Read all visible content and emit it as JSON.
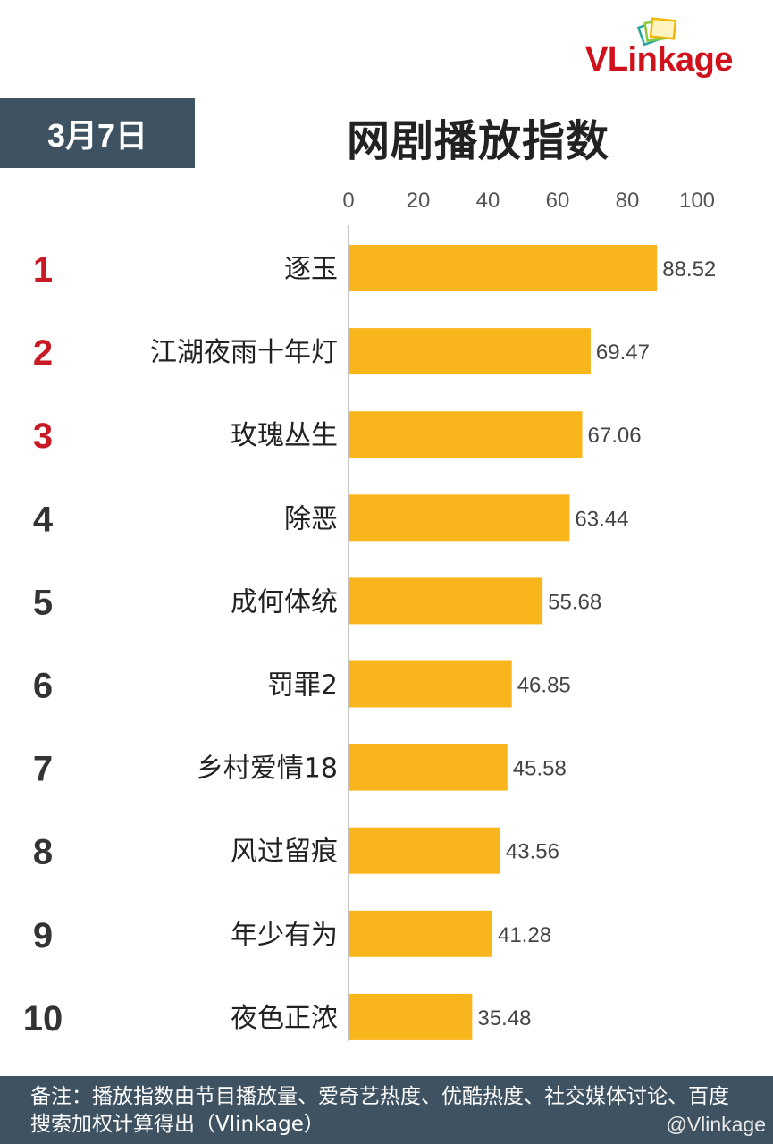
{
  "brand": {
    "logo_text": "VLinkage"
  },
  "header": {
    "date": "3月7日",
    "title": "网剧播放指数"
  },
  "chart_data": {
    "type": "bar",
    "orientation": "horizontal",
    "title": "网剧播放指数",
    "xlim": [
      0,
      100
    ],
    "ticks": [
      0,
      20,
      40,
      60,
      80,
      100
    ],
    "ranks": [
      "1",
      "2",
      "3",
      "4",
      "5",
      "6",
      "7",
      "8",
      "9",
      "10"
    ],
    "categories": [
      "逐玉",
      "江湖夜雨十年灯",
      "玫瑰丛生",
      "除恶",
      "成何体统",
      "罚罪2",
      "乡村爱情18",
      "风过留痕",
      "年少有为",
      "夜色正浓"
    ],
    "values": [
      88.52,
      69.47,
      67.06,
      63.44,
      55.68,
      46.85,
      45.58,
      43.56,
      41.28,
      35.48
    ],
    "value_labels": [
      "88.52",
      "69.47",
      "67.06",
      "63.44",
      "55.68",
      "46.85",
      "45.58",
      "43.56",
      "41.28",
      "35.48"
    ],
    "grid": false
  },
  "colors": {
    "bar": "#f9b51c",
    "header_bg": "#3e5262",
    "top_rank": "#c81a25",
    "rank": "#333333",
    "brand": "#d0101a"
  },
  "footer": {
    "note": "备注：播放指数由节目播放量、爱奇艺热度、优酷热度、社交媒体讨论、百度搜索加权计算得出（Vlinkage）",
    "watermark": "@Vlinkage"
  }
}
